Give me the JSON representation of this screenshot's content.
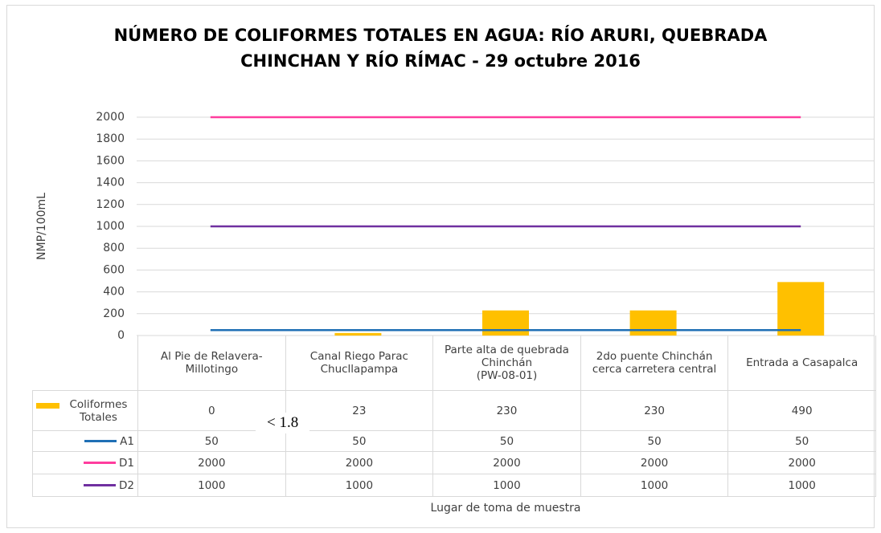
{
  "chart_data": {
    "type": "bar",
    "title": "NÚMERO DE COLIFORMES TOTALES EN AGUA: RÍO ARURI, QUEBRADA\nCHINCHAN Y RÍO RÍMAC - 29 octubre 2016",
    "y_label": "NMP/100mL",
    "x_label": "Lugar de toma de muestra",
    "annotation": "< 1.8",
    "categories": [
      "Al Pie de Relavera-\nMillotingo",
      "Canal Riego Parac\nChucllapampa",
      "Parte alta de quebrada\nChinchán\n(PW-08-01)",
      "2do puente Chinchán\ncerca carretera central",
      "Entrada a Casapalca"
    ],
    "series": [
      {
        "name": "Coliformes Totales",
        "type": "bar",
        "color": "#ffc000",
        "values": [
          0,
          23,
          230,
          230,
          490
        ]
      },
      {
        "name": "A1",
        "type": "line",
        "color": "#1f6fb5",
        "values": [
          50,
          50,
          50,
          50,
          50
        ]
      },
      {
        "name": "D1",
        "type": "line",
        "color": "#ff3d9e",
        "values": [
          2000,
          2000,
          2000,
          2000,
          2000
        ]
      },
      {
        "name": "D2",
        "type": "line",
        "color": "#7030a0",
        "values": [
          1000,
          1000,
          1000,
          1000,
          1000
        ]
      }
    ],
    "ylim": [
      0,
      2000
    ],
    "yticks": [
      0,
      200,
      400,
      600,
      800,
      1000,
      1200,
      1400,
      1600,
      1800,
      2000
    ],
    "grid": true,
    "data_table": true
  }
}
